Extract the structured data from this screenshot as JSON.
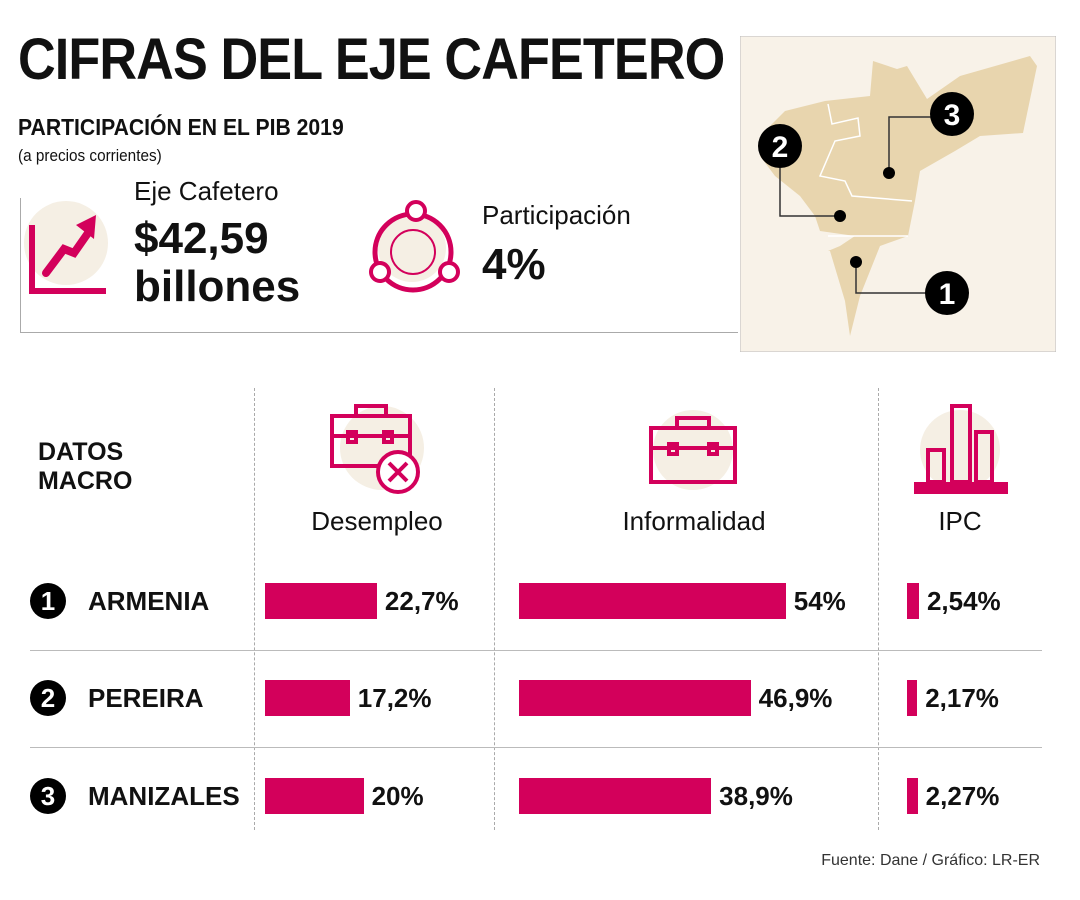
{
  "header": {
    "title": "CIFRAS DEL EJE CAFETERO",
    "subtitle": "PARTICIPACIÓN EN EL PIB 2019",
    "note": "(a precios corrientes)"
  },
  "kpis": [
    {
      "label": "Eje Cafetero",
      "value": "$42,59",
      "unit": "billones",
      "icon": "growth-chart-icon"
    },
    {
      "label": "Participación",
      "value": "4%",
      "icon": "network-circle-icon"
    }
  ],
  "colors": {
    "accent": "#d3005b",
    "map_fill": "#e8d5ae",
    "map_bg": "#f8f2e8",
    "icon_bg": "#f5efe4"
  },
  "map": {
    "markers": [
      "1",
      "2",
      "3"
    ]
  },
  "chart_data": {
    "type": "bar",
    "title": "DATOS MACRO",
    "categories": [
      "ARMENIA",
      "PEREIRA",
      "MANIZALES"
    ],
    "numbers": [
      "1",
      "2",
      "3"
    ],
    "series": [
      {
        "name": "Desempleo",
        "icon": "briefcase-x-icon",
        "values": [
          22.7,
          17.2,
          20
        ],
        "labels": [
          "22,7%",
          "17,2%",
          "20%"
        ]
      },
      {
        "name": "Informalidad",
        "icon": "briefcase-icon",
        "values": [
          54,
          46.9,
          38.9
        ],
        "labels": [
          "54%",
          "46,9%",
          "38,9%"
        ]
      },
      {
        "name": "IPC",
        "icon": "bar-chart-icon",
        "values": [
          2.54,
          2.17,
          2.27
        ],
        "labels": [
          "2,54%",
          "2,17%",
          "2,27%"
        ]
      }
    ]
  },
  "source": "Fuente: Dane / Gráfico: LR-ER"
}
